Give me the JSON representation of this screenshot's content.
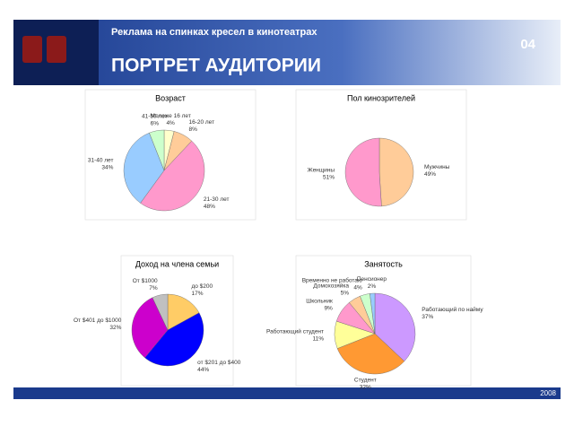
{
  "header": {
    "subtitle": "Реклама на спинках кресел в кинотеатрах",
    "title": "ПОРТРЕТ АУДИТОРИИ",
    "number": "04"
  },
  "footer": {
    "year": "2008"
  },
  "chart_data": [
    {
      "type": "pie",
      "title": "Возраст",
      "categories": [
        "Моложе 16 лет",
        "16-20 лет",
        "21-30 лет",
        "31-40 лет",
        "41-50 лет"
      ],
      "values": [
        4,
        8,
        48,
        34,
        6
      ],
      "value_labels": [
        "4%",
        "8%",
        "48%",
        "34%",
        "6%"
      ],
      "colors": [
        "#ffffcc",
        "#ffcc99",
        "#ff99cc",
        "#99ccff",
        "#ccffcc"
      ]
    },
    {
      "type": "pie",
      "title": "Пол кинозрителей",
      "categories": [
        "Мужчины",
        "Женщины"
      ],
      "values": [
        49,
        51
      ],
      "value_labels": [
        "49%",
        "51%"
      ],
      "colors": [
        "#ffcc99",
        "#ff99cc"
      ]
    },
    {
      "type": "pie",
      "title": "Доход на члена семьи",
      "categories": [
        "до $200",
        "от $201 до $400",
        "От $401 до $1000",
        "От $1000"
      ],
      "values": [
        17,
        44,
        32,
        7
      ],
      "value_labels": [
        "17%",
        "44%",
        "32%",
        "7%"
      ],
      "colors": [
        "#ffcc66",
        "#0000ff",
        "#cc00cc",
        "#c0c0c0"
      ]
    },
    {
      "type": "pie",
      "title": "Занятость",
      "categories": [
        "Работающий по найму",
        "Студент",
        "Работающий студент",
        "Школьник",
        "Домохозяйка",
        "Временно не работаю",
        "Пенсионер"
      ],
      "values": [
        37,
        32,
        11,
        9,
        5,
        4,
        2
      ],
      "value_labels": [
        "37%",
        "32%",
        "11%",
        "9%",
        "5%",
        "4%",
        "2%"
      ],
      "colors": [
        "#cc99ff",
        "#ff9933",
        "#ffff99",
        "#ff99cc",
        "#ffcc99",
        "#ccffcc",
        "#99ccff"
      ]
    }
  ]
}
